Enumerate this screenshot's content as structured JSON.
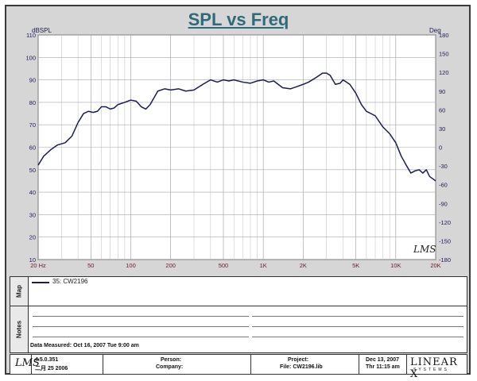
{
  "title": "SPL vs Freq",
  "chart_data": {
    "type": "line",
    "xscale": "log",
    "xlim": [
      20,
      20000
    ],
    "ylim": [
      10,
      110
    ],
    "y2lim": [
      -180,
      180
    ],
    "xlabel_units": "Hz",
    "ylabel": "dBSPL",
    "y2label": "Deg",
    "grid": true,
    "x_tick_labels": [
      {
        "value": 20,
        "label": "20"
      },
      {
        "value": 50,
        "label": "50"
      },
      {
        "value": 100,
        "label": "100"
      },
      {
        "value": 200,
        "label": "200"
      },
      {
        "value": 500,
        "label": "500"
      },
      {
        "value": 1000,
        "label": "1K"
      },
      {
        "value": 2000,
        "label": "2K"
      },
      {
        "value": 5000,
        "label": "5K"
      },
      {
        "value": 10000,
        "label": "10K"
      },
      {
        "value": 20000,
        "label": "20K"
      }
    ],
    "y_ticks": [
      10,
      20,
      30,
      40,
      50,
      60,
      70,
      80,
      90,
      100,
      110
    ],
    "y2_ticks": [
      -180,
      -150,
      -120,
      -90,
      -60,
      -30,
      0,
      30,
      60,
      90,
      120,
      150,
      180
    ],
    "series": [
      {
        "name": "35: CW2196",
        "color": "#1b1b55",
        "x": [
          20,
          22,
          25,
          28,
          32,
          36,
          40,
          44,
          48,
          52,
          56,
          60,
          65,
          70,
          75,
          80,
          90,
          100,
          110,
          120,
          130,
          140,
          160,
          180,
          200,
          230,
          260,
          300,
          350,
          400,
          450,
          500,
          550,
          600,
          700,
          800,
          900,
          1000,
          1100,
          1200,
          1400,
          1600,
          1800,
          2000,
          2200,
          2500,
          2800,
          3000,
          3200,
          3500,
          3800,
          4000,
          4500,
          5000,
          5500,
          6000,
          7000,
          8000,
          9000,
          10000,
          11000,
          12000,
          13000,
          14000,
          15000,
          16000,
          17000,
          18000,
          20000
        ],
        "y": [
          52,
          56,
          59,
          61,
          62,
          65,
          71,
          75,
          76,
          75.5,
          76,
          78,
          78,
          77,
          77.5,
          79,
          80,
          81,
          80.5,
          78,
          77,
          79,
          85,
          86,
          85.5,
          86,
          85,
          85.5,
          88,
          90,
          89,
          90,
          89.5,
          90,
          89,
          88.5,
          89.5,
          90,
          89,
          89.5,
          86.5,
          86,
          87,
          88,
          89,
          91,
          93,
          93,
          92,
          88,
          88.5,
          90,
          88,
          84,
          79,
          76,
          74,
          69,
          66,
          62,
          56,
          52,
          48.5,
          49.5,
          50,
          48.5,
          50,
          47,
          45
        ]
      }
    ]
  },
  "map_panel": {
    "tab_label": "Map",
    "legend_entry": "35: CW2196"
  },
  "notes_panel": {
    "tab_label": "Notes",
    "date_measured": "Data Measured: Oct 16, 2007  Tue  9:00 am"
  },
  "footer": {
    "logo_text": "LMS",
    "version": "4.5.0.351",
    "version_date": "二月 25 2006",
    "person_label": "Person:",
    "company_label": "Company:",
    "project_label": "Project:",
    "file_label": "File: CW2196.lib",
    "date": "Dec 13, 2007",
    "time": "Thr 11:15 am",
    "brand": "LINEAR X",
    "brand_sub": "SYSTEMS"
  },
  "watermark": "LMS"
}
